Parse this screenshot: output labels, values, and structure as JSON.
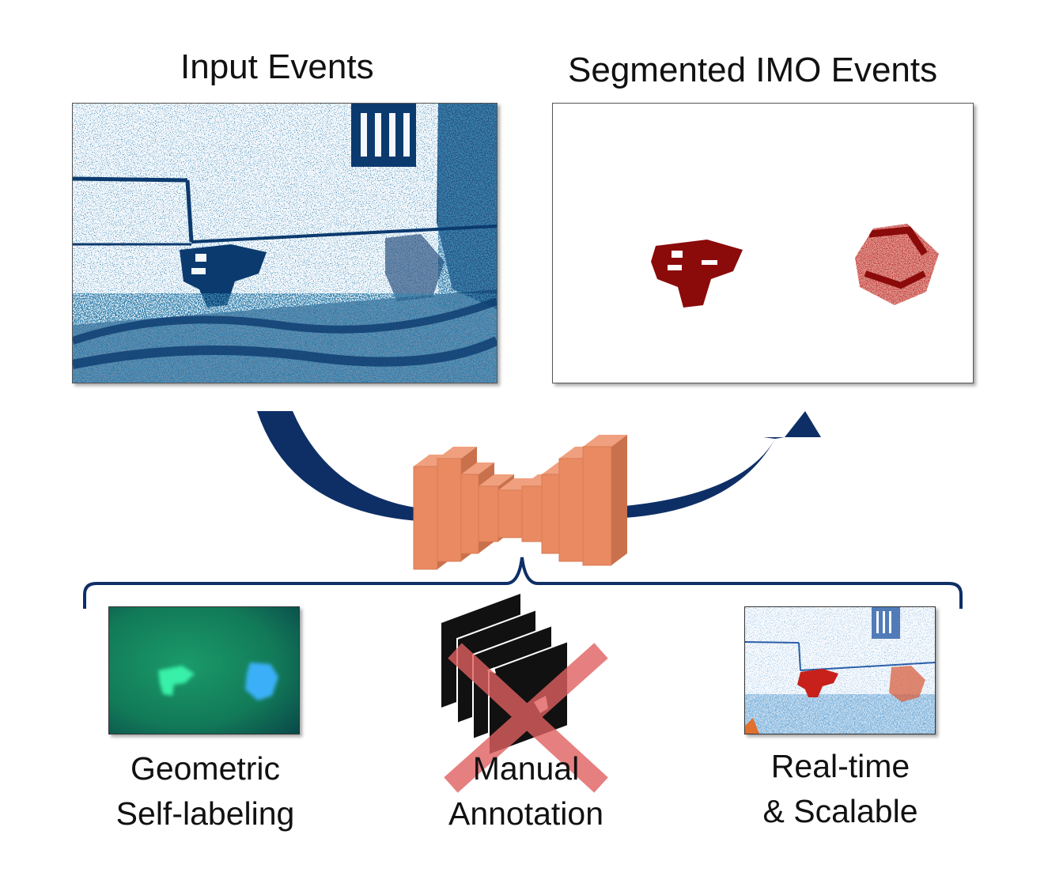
{
  "titles": {
    "input": "Input Events",
    "output": "Segmented IMO Events"
  },
  "captions": {
    "geometric": [
      "Geometric",
      "Self-labeling"
    ],
    "manual": [
      "Manual",
      "Annotation"
    ],
    "realtime": [
      "Real-time",
      "& Scalable"
    ]
  },
  "colors": {
    "event_blue": "#0b3a6e",
    "arrow_navy": "#0e2f66",
    "network_orange": "#e98a62",
    "segment_red": "#8b0a0a",
    "cross_red": "#e06060"
  },
  "icons": {
    "network": "encoder-decoder-network-icon",
    "cross": "cross-out-icon",
    "brace": "curly-brace-icon"
  }
}
